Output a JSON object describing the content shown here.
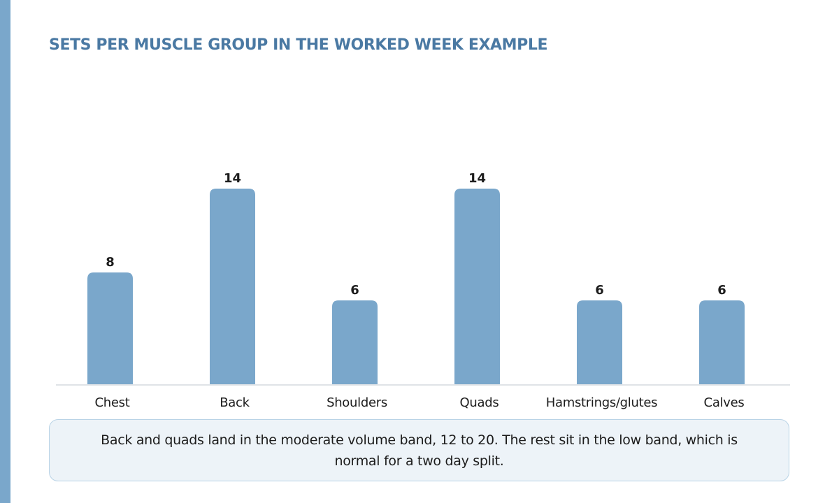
{
  "title": "SETS PER MUSCLE GROUP IN THE WORKED WEEK EXAMPLE",
  "colors": {
    "accent": "#7aa7cb",
    "title": "#4a79a3",
    "bar": "#7aa7cb",
    "baseline": "#dfe3e7",
    "note_background": "#edf3f8",
    "note_border": "#b9d3e6"
  },
  "chart_data": {
    "type": "bar",
    "title": "SETS PER MUSCLE GROUP IN THE WORKED WEEK EXAMPLE",
    "categories": [
      "Chest",
      "Back",
      "Shoulders",
      "Quads",
      "Hamstrings/glutes",
      "Calves"
    ],
    "values": [
      8,
      14,
      6,
      14,
      6,
      6
    ],
    "ylim": [
      0,
      14
    ],
    "grid": false,
    "axis_y_visible": false,
    "data_labels": true
  },
  "note": {
    "text": "Back and quads land in the moderate volume band, 12 to 20. The rest sit in the low band, which is normal for a two day split."
  }
}
